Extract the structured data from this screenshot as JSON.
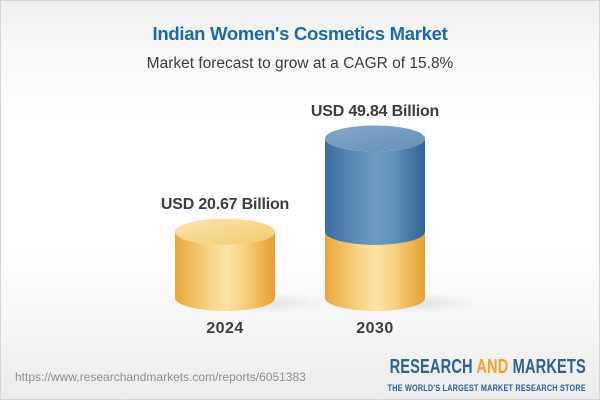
{
  "header": {
    "title": "Indian Women's Cosmetics Market",
    "subtitle": "Market forecast to grow at a CAGR of 15.8%"
  },
  "chart_data": {
    "type": "bar",
    "subtype": "3d_cylinder_stacked",
    "title": "Indian Women's Cosmetics Market",
    "subtitle": "Market forecast to grow at a CAGR of 15.8%",
    "unit": "USD Billion",
    "cagr_percent": 15.8,
    "categories": [
      "2024",
      "2030"
    ],
    "values": [
      20.67,
      49.84
    ],
    "value_labels": [
      "USD 20.67 Billion",
      "USD 49.84 Billion"
    ],
    "bars": [
      {
        "category": "2024",
        "total": 20.67,
        "segments": [
          {
            "value": 20.67,
            "color_key": "base"
          }
        ]
      },
      {
        "category": "2030",
        "total": 49.84,
        "segments": [
          {
            "value": 20.67,
            "color_key": "base"
          },
          {
            "value": 29.17,
            "color_key": "growth"
          }
        ]
      }
    ],
    "colors": {
      "base": "#f3cd76",
      "growth": "#5d8ab2",
      "label_text": "#3d3d3d",
      "title_blue": "#1e68ae"
    },
    "legend": "none",
    "axes": "hidden",
    "gridlines": false
  },
  "footer": {
    "url": "https://www.researchandmarkets.com/reports/6051383",
    "logo": {
      "word1": "RESEARCH",
      "word2": "AND",
      "word3": "MARKETS",
      "tagline": "THE WORLD'S LARGEST MARKET RESEARCH STORE",
      "blue": "#2d6194",
      "orange": "#f0a62e"
    }
  }
}
